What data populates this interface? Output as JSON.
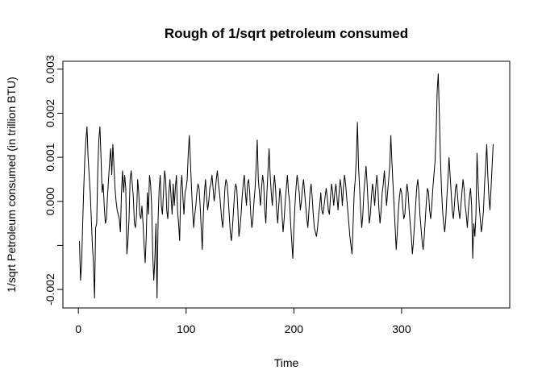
{
  "chart_data": {
    "type": "line",
    "title": "Rough of 1/sqrt petroleum consumed",
    "x_label": "Time",
    "y_label": "1/sqrt Petroleum consumed (in trillion BTU)",
    "xlim": [
      -14.36,
      400.36
    ],
    "ylim": [
      -0.00242,
      0.00318
    ],
    "xticks": [
      0,
      100,
      200,
      300
    ],
    "yticks": [
      -0.002,
      {
        "value": -0.001,
        "label": null
      },
      {
        "value": 0,
        "label": "0.000"
      },
      0.001,
      0.002,
      0.003
    ],
    "series": [
      {
        "name": null,
        "color": "#000000",
        "x": [
          1,
          2,
          3,
          4,
          5,
          6,
          7,
          8,
          9,
          10,
          11,
          12,
          13,
          14,
          15,
          16,
          17,
          18,
          19,
          20,
          21,
          22,
          23,
          24,
          25,
          26,
          27,
          28,
          29,
          30,
          31,
          32,
          33,
          34,
          35,
          36,
          37,
          38,
          39,
          40,
          41,
          42,
          43,
          44,
          45,
          46,
          47,
          48,
          49,
          50,
          51,
          52,
          53,
          54,
          55,
          56,
          57,
          58,
          59,
          60,
          61,
          62,
          63,
          64,
          65,
          66,
          67,
          68,
          69,
          70,
          71,
          72,
          73,
          74,
          75,
          76,
          77,
          78,
          79,
          80,
          81,
          82,
          83,
          84,
          85,
          86,
          87,
          88,
          89,
          90,
          91,
          92,
          93,
          94,
          95,
          96,
          97,
          98,
          99,
          100,
          101,
          102,
          103,
          104,
          105,
          106,
          107,
          108,
          109,
          110,
          111,
          112,
          113,
          114,
          115,
          116,
          117,
          118,
          119,
          120,
          121,
          122,
          123,
          124,
          125,
          126,
          127,
          128,
          129,
          130,
          131,
          132,
          133,
          134,
          135,
          136,
          137,
          138,
          139,
          140,
          141,
          142,
          143,
          144,
          145,
          146,
          147,
          148,
          149,
          150,
          151,
          152,
          153,
          154,
          155,
          156,
          157,
          158,
          159,
          160,
          161,
          162,
          163,
          164,
          165,
          166,
          167,
          168,
          169,
          170,
          171,
          172,
          173,
          174,
          175,
          176,
          177,
          178,
          179,
          180,
          181,
          182,
          183,
          184,
          185,
          186,
          187,
          188,
          189,
          190,
          191,
          192,
          193,
          194,
          195,
          196,
          197,
          198,
          199,
          200,
          201,
          202,
          203,
          204,
          205,
          206,
          207,
          208,
          209,
          210,
          211,
          212,
          213,
          214,
          215,
          216,
          217,
          218,
          219,
          220,
          221,
          222,
          223,
          224,
          225,
          226,
          227,
          228,
          229,
          230,
          231,
          232,
          233,
          234,
          235,
          236,
          237,
          238,
          239,
          240,
          241,
          242,
          243,
          244,
          245,
          246,
          247,
          248,
          249,
          250,
          251,
          252,
          253,
          254,
          255,
          256,
          257,
          258,
          259,
          260,
          261,
          262,
          263,
          264,
          265,
          266,
          267,
          268,
          269,
          270,
          271,
          272,
          273,
          274,
          275,
          276,
          277,
          278,
          279,
          280,
          281,
          282,
          283,
          284,
          285,
          286,
          287,
          288,
          289,
          290,
          291,
          292,
          293,
          294,
          295,
          296,
          297,
          298,
          299,
          300,
          301,
          302,
          303,
          304,
          305,
          306,
          307,
          308,
          309,
          310,
          311,
          312,
          313,
          314,
          315,
          316,
          317,
          318,
          319,
          320,
          321,
          322,
          323,
          324,
          325,
          326,
          327,
          328,
          329,
          330,
          331,
          332,
          333,
          334,
          335,
          336,
          337,
          338,
          339,
          340,
          341,
          342,
          343,
          344,
          345,
          346,
          347,
          348,
          349,
          350,
          351,
          352,
          353,
          354,
          355,
          356,
          357,
          358,
          359,
          360,
          361,
          362,
          363,
          364,
          365,
          366,
          367,
          368,
          369,
          370,
          371,
          372,
          373,
          374,
          375,
          376,
          377,
          378,
          379,
          380,
          381,
          382,
          383,
          384,
          385
        ],
        "values": [
          -0.0009,
          -0.0018,
          -0.0014,
          -0.0005,
          0.0003,
          0.001,
          0.0014,
          0.0017,
          0.001,
          0.0006,
          0.0002,
          -0.0004,
          -0.001,
          -0.0014,
          -0.0022,
          -0.0006,
          -0.0005,
          0.0007,
          0.0014,
          0.0017,
          0.001,
          0.0002,
          0.0004,
          -0.0001,
          -0.0005,
          -0.0004,
          0.0001,
          0.0005,
          0.0009,
          0.0012,
          0.0006,
          0.0013,
          0.0008,
          0.0003,
          0,
          -0.0002,
          -0.0003,
          -0.0004,
          -0.0007,
          0.0002,
          0.0007,
          0.0002,
          0.0006,
          0.0003,
          -0.0012,
          -0.0009,
          -0.0004,
          0.0005,
          0.0007,
          0.0004,
          0.0001,
          -0.0005,
          -0.0006,
          -0.0003,
          0.0005,
          0.0002,
          -0.0003,
          -0.0004,
          -0.0001,
          -0.0005,
          -0.001,
          -0.0014,
          -0.0008,
          0.0002,
          -0.0003,
          0.0006,
          0.0004,
          -0.0001,
          -0.0012,
          -0.0018,
          -0.0013,
          -0.0005,
          -0.0022,
          -0.0004,
          0.0003,
          0.0006,
          -0.0001,
          -0.0003,
          0.0002,
          0.0007,
          0.0005,
          -0.0002,
          -0.0004,
          0.0002,
          0.0005,
          0.0001,
          -0.0003,
          0.0004,
          -0.0001,
          0.0003,
          0.0006,
          -0.0002,
          -0.0005,
          -0.0009,
          0.0003,
          0.0006,
          0.0001,
          -0.0003,
          0.0002,
          0.0003,
          0.0005,
          0.0011,
          0.0015,
          0.0009,
          0.0003,
          -0.0002,
          -0.0006,
          -0.0003,
          -0.0001,
          0.0002,
          0.0004,
          0.0003,
          -0.0001,
          -0.0006,
          -0.0011,
          -0.0003,
          0.0002,
          0.0005,
          0.0001,
          -0.0002,
          0,
          0.0003,
          0.0004,
          0.0006,
          0.0003,
          0,
          0.0002,
          0.0005,
          0.0007,
          0.0004,
          0.0002,
          -0.0001,
          -0.0004,
          -0.0006,
          -0.0002,
          0.0003,
          0.0005,
          0.0004,
          0.0001,
          -0.0003,
          -0.0007,
          -0.0009,
          -0.0006,
          -0.0002,
          0.0002,
          0.0004,
          0.0003,
          -0.0002,
          -0.0008,
          -0.0006,
          -0.0003,
          0.0001,
          0.0004,
          0.0006,
          0.0002,
          -0.0001,
          0.0004,
          0.0005,
          0.0002,
          -0.0003,
          -0.0006,
          -0.0004,
          0,
          0.0003,
          0.0008,
          0.0014,
          0.0005,
          0.0002,
          -0.0001,
          0.0003,
          0.0006,
          0.0004,
          -0.0002,
          -0.0005,
          0.0002,
          0.0007,
          0.0012,
          0.0006,
          0.0002,
          -0.0001,
          0.0003,
          0.0006,
          0.0003,
          -0.0002,
          -0.0005,
          -0.0001,
          0.0003,
          0.0001,
          -0.0003,
          -0.0007,
          -0.0004,
          0,
          0.0003,
          0.0006,
          0.0002,
          0,
          -0.0005,
          -0.0009,
          -0.0013,
          -0.0006,
          -0.0001,
          0.0003,
          0.0006,
          0.0004,
          0.0002,
          -0.0002,
          0,
          0.0003,
          0.0005,
          0.0002,
          -0.0001,
          -0.0004,
          -0.0006,
          -0.0002,
          0.0002,
          0.0004,
          0.0001,
          -0.0003,
          -0.0006,
          -0.0007,
          -0.0008,
          -0.0006,
          -0.0003,
          -0.0001,
          0.0002,
          -0.0002,
          -0.0003,
          -0.0001,
          0.0001,
          0.0003,
          0.0001,
          -0.0002,
          -0.0003,
          0.0001,
          0.0004,
          0.0002,
          -0.0001,
          0.0002,
          0.0004,
          0.0001,
          -0.0002,
          0.0002,
          0.0005,
          0.0003,
          -0.0001,
          0.0003,
          0.0006,
          0.0004,
          0.0001,
          -0.0002,
          -0.0005,
          -0.0008,
          -0.001,
          -0.0012,
          -0.0005,
          0.0002,
          0.0005,
          0.001,
          0.0018,
          0.0008,
          0.0003,
          -0.0002,
          -0.0006,
          -0.0003,
          0.0002,
          0.0005,
          0.0008,
          0.0004,
          -0.0001,
          -0.0005,
          -0.0003,
          0.0001,
          0.0004,
          0.0002,
          -0.0001,
          0.0003,
          0.0006,
          0.0003,
          -0.0002,
          -0.0005,
          -0.0002,
          0.0002,
          0.0004,
          0.0007,
          0.0003,
          -0.0001,
          0.0002,
          0.0005,
          0.0008,
          0.0015,
          0.0009,
          0.0004,
          -0.0001,
          -0.0006,
          -0.0011,
          -0.0007,
          -0.0002,
          0.0001,
          0.0003,
          0.0002,
          -0.0001,
          -0.0004,
          -0.0003,
          0.0001,
          0.0004,
          0.0002,
          -0.0002,
          -0.0005,
          -0.0008,
          -0.0012,
          -0.0009,
          -0.0005,
          -0.0001,
          0.0003,
          0.0005,
          0.0002,
          -0.0003,
          -0.0006,
          -0.0009,
          -0.0011,
          -0.0008,
          -0.0004,
          0,
          0.0003,
          0.0002,
          -0.0002,
          -0.0004,
          -0.0001,
          0.0003,
          0.0006,
          0.0009,
          0.0015,
          0.0025,
          0.0029,
          0.002,
          0.001,
          0.0003,
          -0.0002,
          -0.0005,
          -0.0007,
          -0.0004,
          0.0001,
          0.0005,
          0.001,
          0.0006,
          0.0002,
          -0.0002,
          -0.0004,
          -0.0001,
          0.0003,
          0.0004,
          0.0001,
          -0.0002,
          -0.0004,
          -0.0001,
          0.0002,
          0.0005,
          0.0003,
          -0.0001,
          -0.0003,
          -0.0006,
          -0.0002,
          0.0001,
          0.0003,
          -0.0001,
          -0.0013,
          -0.0005,
          -0.0008,
          -0.0003,
          0.0011,
          0.0004,
          -0.0001,
          -0.0004,
          -0.0007,
          -0.0005,
          -0.0002,
          0.0004,
          0.0008,
          0.0013,
          0.0006,
          0.0001,
          -0.0002,
          0.0003,
          0.0008,
          0.0013
        ]
      }
    ]
  }
}
